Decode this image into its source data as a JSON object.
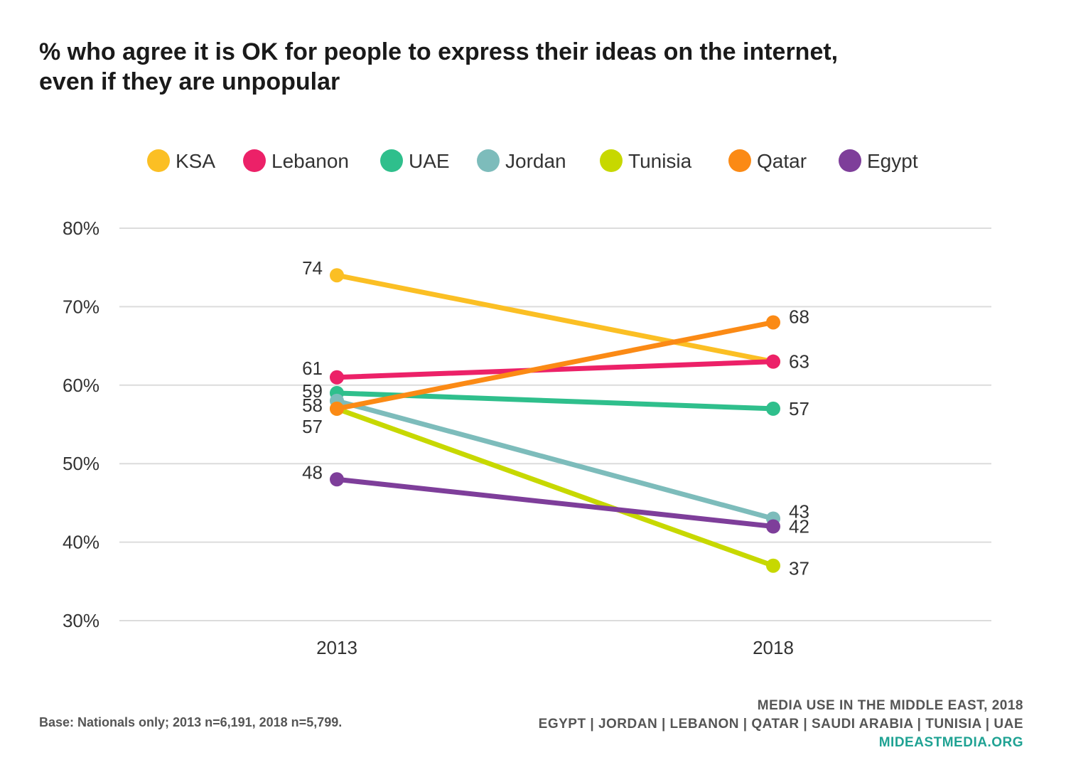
{
  "title_lines": [
    "% who agree it is OK for people to express their ideas on the internet,",
    "even if they are unpopular"
  ],
  "footer": {
    "base_note": "Base: Nationals only; 2013 n=6,191, 2018 n=5,799.",
    "source_title": "MEDIA USE IN THE MIDDLE EAST, 2018",
    "countries": "EGYPT | JORDAN | LEBANON | QATAR | SAUDI ARABIA | TUNISIA | UAE",
    "site": "MIDEASTMEDIA.ORG"
  },
  "chart_data": {
    "type": "line",
    "x": [
      "2013",
      "2018"
    ],
    "ylim": [
      30,
      80
    ],
    "yticks": [
      80,
      70,
      60,
      50,
      40,
      30
    ],
    "ytick_labels": [
      "80%",
      "70%",
      "60%",
      "50%",
      "40%",
      "30%"
    ],
    "grid": true,
    "legend_position": "top",
    "series": [
      {
        "name": "KSA",
        "color": "#fbbf24",
        "values": [
          74,
          63
        ],
        "labels": [
          "74",
          ""
        ]
      },
      {
        "name": "Lebanon",
        "color": "#ec2168",
        "values": [
          61,
          63
        ],
        "labels": [
          "61",
          "63"
        ]
      },
      {
        "name": "UAE",
        "color": "#2fbf8c",
        "values": [
          59,
          57
        ],
        "labels": [
          "59",
          "57"
        ]
      },
      {
        "name": "Jordan",
        "color": "#7dbcbb",
        "values": [
          58,
          43
        ],
        "labels": [
          "58",
          "43"
        ]
      },
      {
        "name": "Tunisia",
        "color": "#c7d800",
        "values": [
          57,
          37
        ],
        "labels": [
          "",
          "37"
        ]
      },
      {
        "name": "Qatar",
        "color": "#fb8a15",
        "values": [
          57,
          68
        ],
        "labels": [
          "57",
          "68"
        ]
      },
      {
        "name": "Egypt",
        "color": "#7e3e9a",
        "values": [
          48,
          42
        ],
        "labels": [
          "48",
          "42"
        ]
      }
    ]
  }
}
